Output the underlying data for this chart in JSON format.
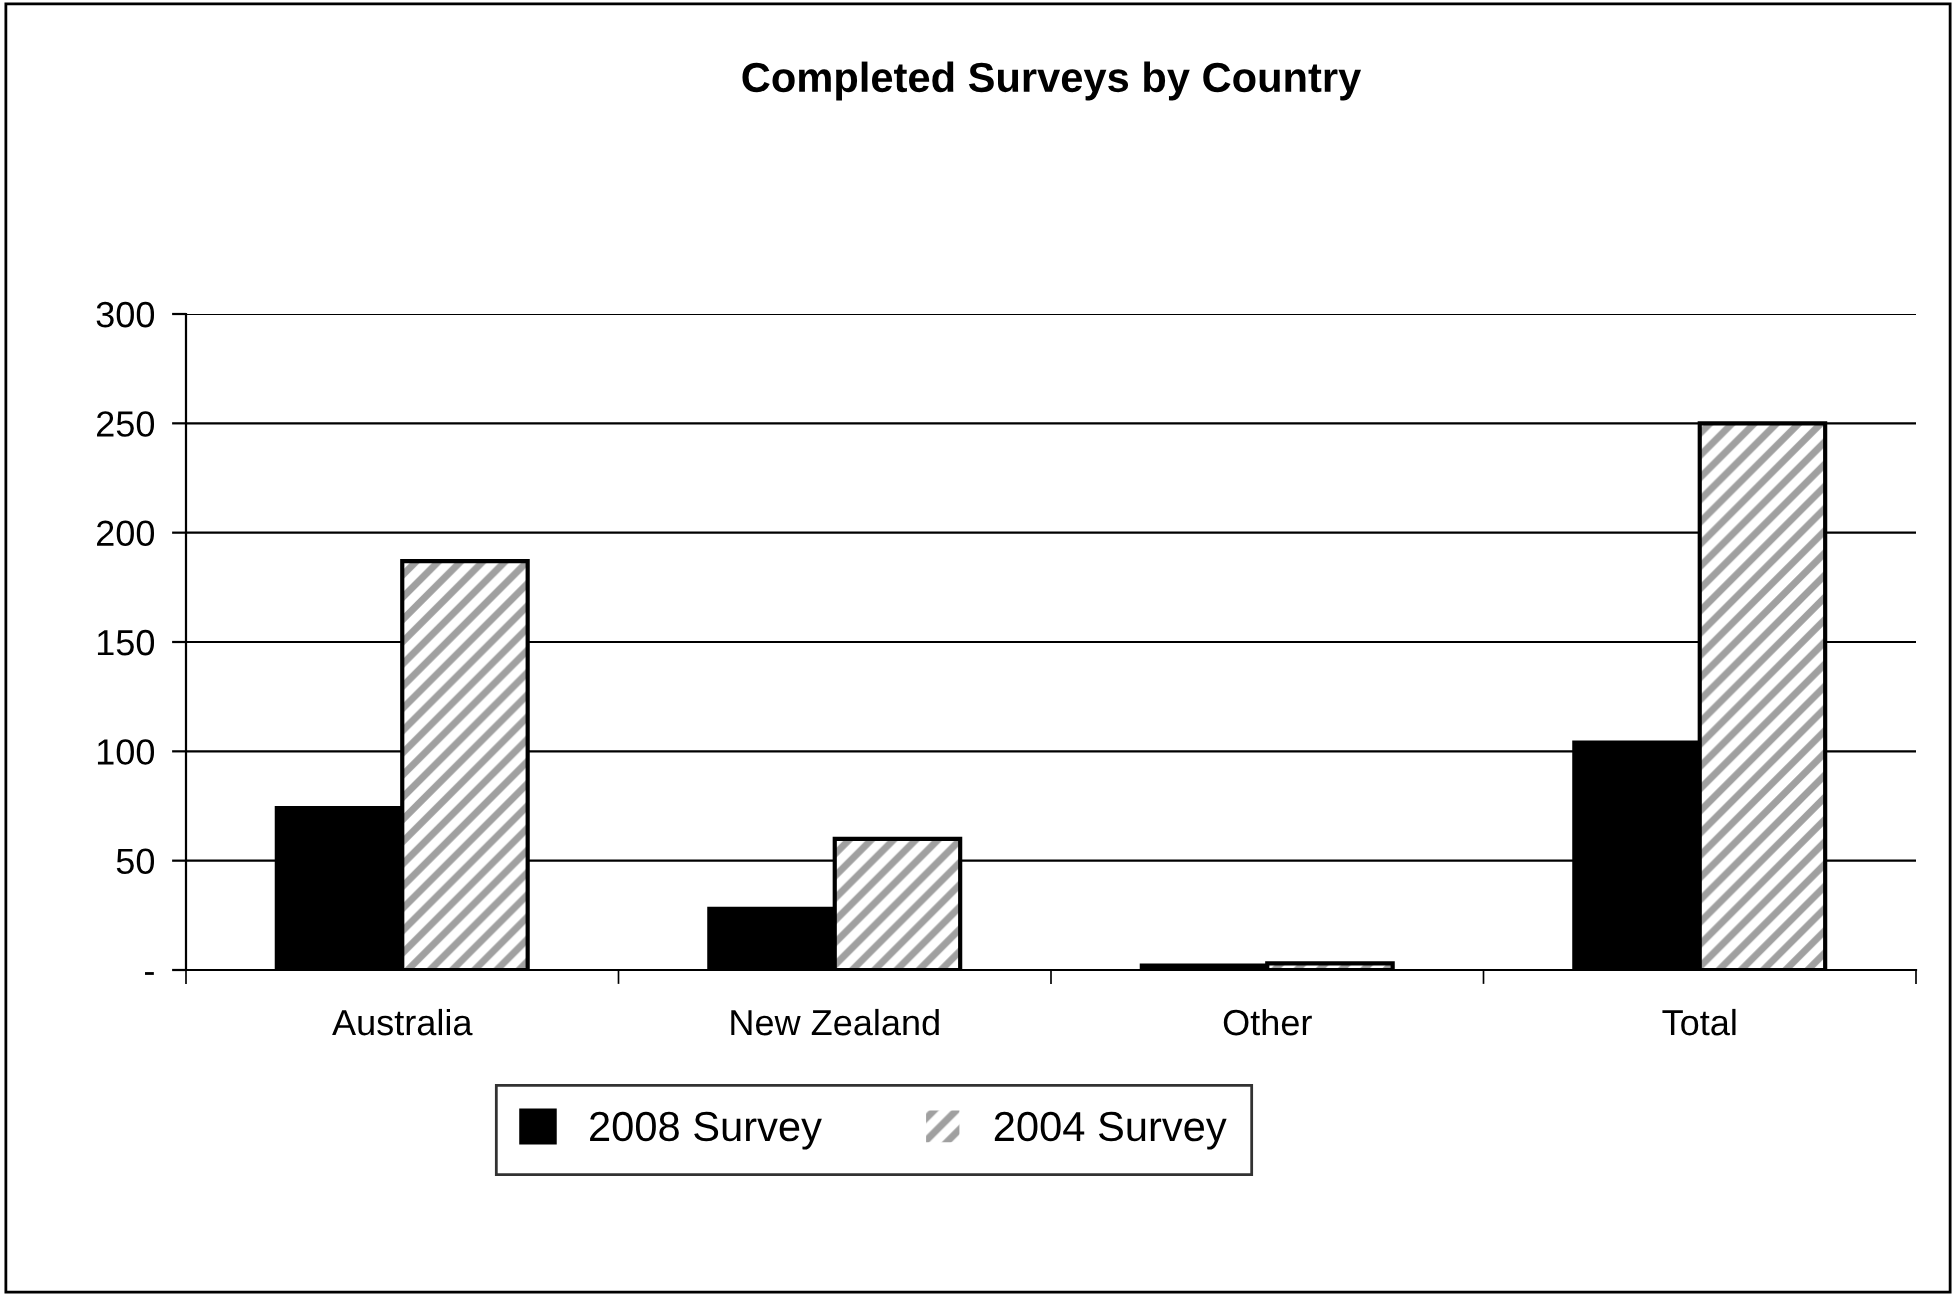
{
  "chart_data": {
    "type": "bar",
    "title": "Completed Surveys by Country",
    "categories": [
      "Australia",
      "New Zealand",
      "Other",
      "Total"
    ],
    "series": [
      {
        "name": "2008 Survey",
        "color": "#000000",
        "values": [
          74,
          28,
          2,
          104
        ]
      },
      {
        "name": "2004 Survey",
        "color": "#a0a0a0",
        "values": [
          187,
          60,
          3,
          250
        ]
      }
    ],
    "ylim": [
      0,
      300
    ],
    "yticks": [
      {
        "value": 0,
        "label": "-"
      },
      50,
      100,
      150,
      200,
      250,
      300
    ],
    "grid": "y",
    "legend": "bottom"
  }
}
